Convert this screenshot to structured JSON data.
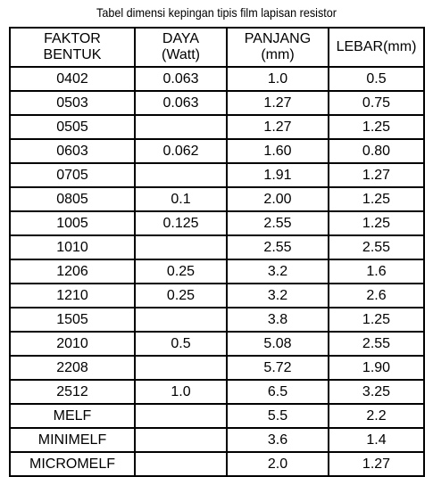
{
  "caption": "Tabel dimensi kepingan tipis film lapisan resistor",
  "headers": [
    [
      "FAKTOR",
      "BENTUK"
    ],
    [
      "DAYA",
      "(Watt)"
    ],
    [
      "PANJANG",
      "(mm)"
    ],
    [
      "LEBAR(mm)"
    ]
  ],
  "rows": [
    [
      "0402",
      "0.063",
      "1.0",
      "0.5"
    ],
    [
      "0503",
      "0.063",
      "1.27",
      "0.75"
    ],
    [
      "0505",
      "",
      "1.27",
      "1.25"
    ],
    [
      "0603",
      "0.062",
      "1.60",
      "0.80"
    ],
    [
      "0705",
      "",
      "1.91",
      "1.27"
    ],
    [
      "0805",
      "0.1",
      "2.00",
      "1.25"
    ],
    [
      "1005",
      "0.125",
      "2.55",
      "1.25"
    ],
    [
      "1010",
      "",
      "2.55",
      "2.55"
    ],
    [
      "1206",
      "0.25",
      "3.2",
      "1.6"
    ],
    [
      "1210",
      "0.25",
      "3.2",
      "2.6"
    ],
    [
      "1505",
      "",
      "3.8",
      "1.25"
    ],
    [
      "2010",
      "0.5",
      "5.08",
      "2.55"
    ],
    [
      "2208",
      "",
      "5.72",
      "1.90"
    ],
    [
      "2512",
      "1.0",
      "6.5",
      "3.25"
    ],
    [
      "MELF",
      "",
      "5.5",
      "2.2"
    ],
    [
      "MINIMELF",
      "",
      "3.6",
      "1.4"
    ],
    [
      "MICROMELF",
      "",
      "2.0",
      "1.27"
    ]
  ]
}
